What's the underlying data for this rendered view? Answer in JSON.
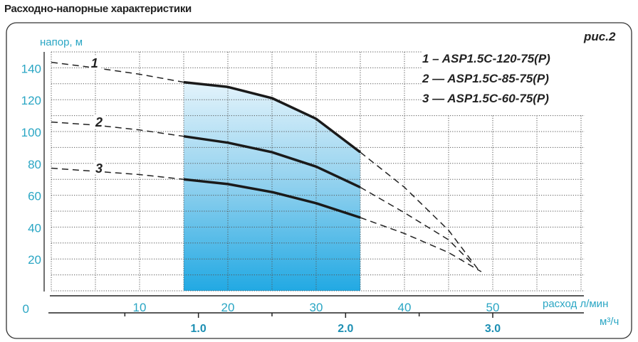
{
  "page_title": "Расходно-напорные характеристики",
  "chart_data": {
    "type": "line",
    "figure_label": "рис.2",
    "ylabel": "напор, м",
    "xlabel": "расход",
    "xunit": "л/мин",
    "x2unit": "м³/ч",
    "ylim": [
      0,
      150
    ],
    "xlim": [
      0,
      60
    ],
    "yticks": [
      "0",
      "20",
      "40",
      "60",
      "80",
      "100",
      "120",
      "140"
    ],
    "xticks": [
      "10",
      "20",
      "30",
      "40",
      "50"
    ],
    "x2ticks": [
      "1.0",
      "2.0",
      "3.0"
    ],
    "grid": true,
    "working_range_lpm": [
      15,
      35
    ],
    "series": [
      {
        "id": "1",
        "name": "1 – ASP1.5C-120-75(P)",
        "dashed_left": [
          [
            0,
            143.5
          ],
          [
            5,
            140
          ],
          [
            10,
            136
          ],
          [
            15,
            131
          ]
        ],
        "solid": [
          [
            15,
            131
          ],
          [
            20,
            128
          ],
          [
            25,
            121
          ],
          [
            30,
            108
          ],
          [
            35,
            87
          ]
        ],
        "dashed_right": [
          [
            35,
            87
          ],
          [
            40,
            65
          ],
          [
            45,
            38
          ],
          [
            48.4,
            13
          ]
        ]
      },
      {
        "id": "2",
        "name": "2 — ASP1.5C-85-75(P)",
        "dashed_left": [
          [
            0,
            106
          ],
          [
            5,
            104
          ],
          [
            10,
            101
          ],
          [
            15,
            97
          ]
        ],
        "solid": [
          [
            15,
            97
          ],
          [
            20,
            93
          ],
          [
            25,
            87
          ],
          [
            30,
            78
          ],
          [
            35,
            65
          ]
        ],
        "dashed_right": [
          [
            35,
            65
          ],
          [
            40,
            49
          ],
          [
            45,
            32
          ],
          [
            47.7,
            17
          ]
        ]
      },
      {
        "id": "3",
        "name": "3 — ASP1.5C-60-75(P)",
        "dashed_left": [
          [
            0,
            77
          ],
          [
            5,
            75
          ],
          [
            10,
            73
          ],
          [
            15,
            70
          ]
        ],
        "solid": [
          [
            15,
            70
          ],
          [
            20,
            67
          ],
          [
            25,
            62
          ],
          [
            30,
            55
          ],
          [
            35,
            46
          ]
        ],
        "dashed_right": [
          [
            35,
            46
          ],
          [
            40,
            36
          ],
          [
            45,
            24
          ],
          [
            48.7,
            12
          ]
        ]
      }
    ],
    "colors": {
      "tick": "#2aa6c4",
      "curve": "#1a1a1a",
      "fill_top": "#e3f3fb",
      "fill_bottom": "#22a9e3"
    }
  }
}
